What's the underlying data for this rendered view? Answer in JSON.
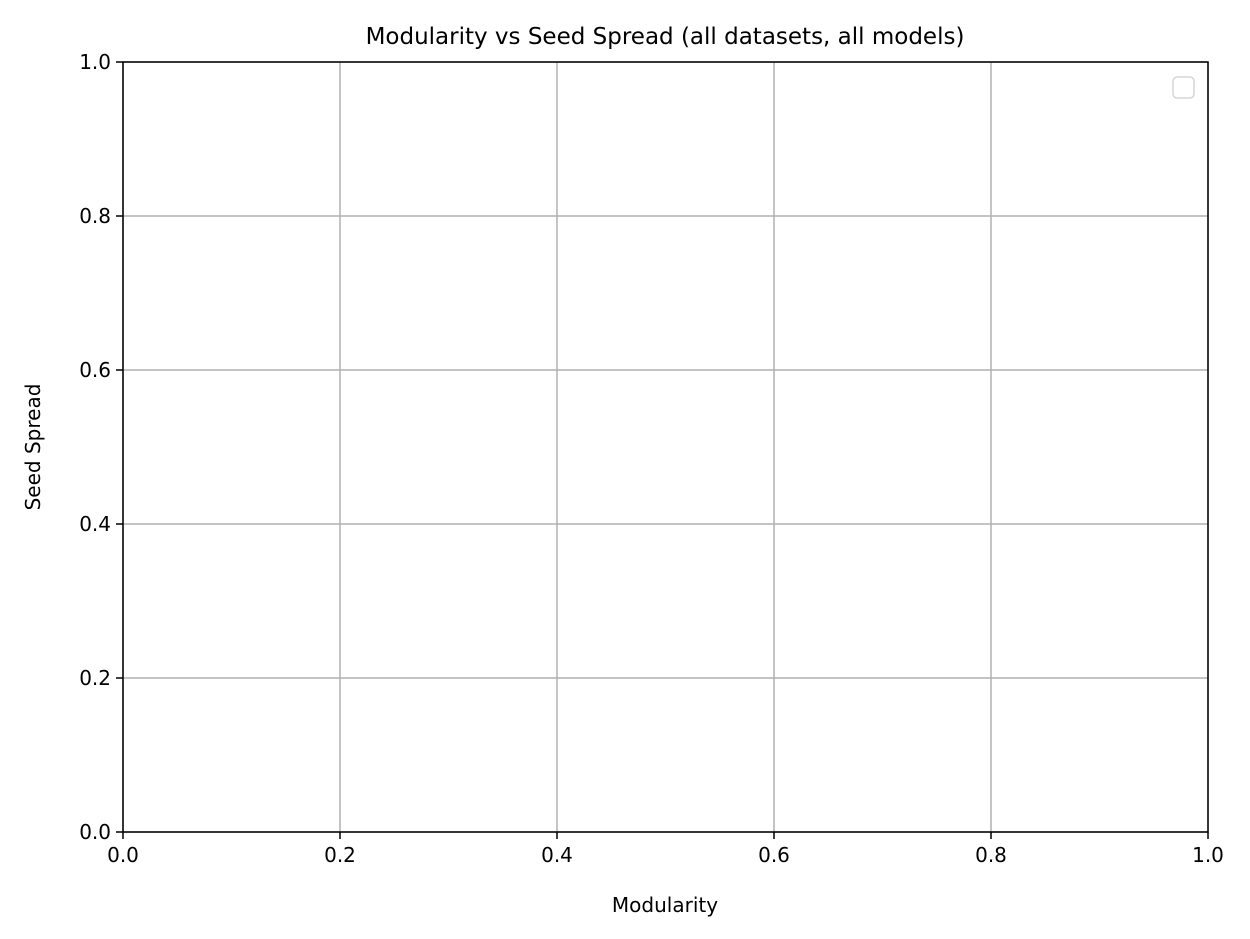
{
  "chart_data": {
    "type": "scatter",
    "title": "Modularity vs Seed Spread (all datasets, all models)",
    "xlabel": "Modularity",
    "ylabel": "Seed Spread",
    "xlim": [
      0,
      1
    ],
    "ylim": [
      0,
      1
    ],
    "xticks": [
      0.0,
      0.2,
      0.4,
      0.6,
      0.8,
      1.0
    ],
    "yticks": [
      0.0,
      0.2,
      0.4,
      0.6,
      0.8,
      1.0
    ],
    "xtick_labels": [
      "0.0",
      "0.2",
      "0.4",
      "0.6",
      "0.8",
      "1.0"
    ],
    "ytick_labels": [
      "0.0",
      "0.2",
      "0.4",
      "0.6",
      "0.8",
      "1.0"
    ],
    "grid": true,
    "legend": {
      "placement": "top-right",
      "entries": []
    },
    "series": []
  }
}
